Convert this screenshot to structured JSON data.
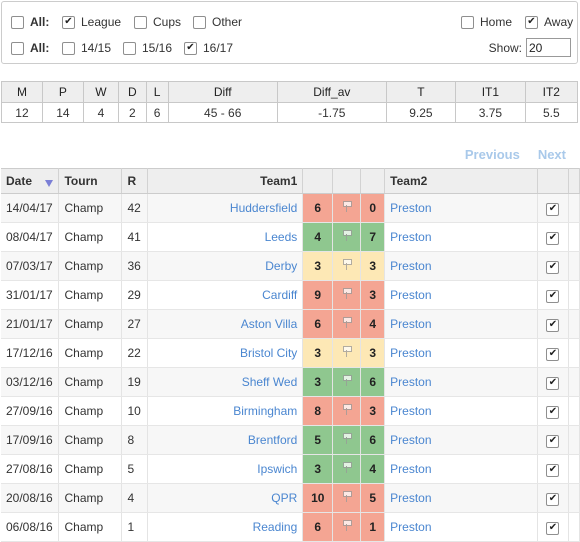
{
  "filters": {
    "row1": [
      {
        "label": "All:",
        "checked": false,
        "bold": true
      },
      {
        "label": "League",
        "checked": true,
        "bold": false
      },
      {
        "label": "Cups",
        "checked": false,
        "bold": false
      },
      {
        "label": "Other",
        "checked": false,
        "bold": false
      }
    ],
    "row2": [
      {
        "label": "All:",
        "checked": false,
        "bold": true
      },
      {
        "label": "14/15",
        "checked": false,
        "bold": false
      },
      {
        "label": "15/16",
        "checked": false,
        "bold": false
      },
      {
        "label": "16/17",
        "checked": true,
        "bold": false
      }
    ],
    "home": {
      "label": "Home",
      "checked": false
    },
    "away": {
      "label": "Away",
      "checked": true
    },
    "show_label": "Show:",
    "show_value": "20"
  },
  "stats": {
    "headers": [
      "M",
      "P",
      "W",
      "D",
      "L",
      "Diff",
      "Diff_av",
      "T",
      "IT1",
      "IT2"
    ],
    "values": [
      "12",
      "14",
      "4",
      "2",
      "6",
      "45 - 66",
      "-1.75",
      "9.25",
      "3.75",
      "5.5"
    ]
  },
  "pager": {
    "previous": "Previous",
    "next": "Next"
  },
  "colors": {
    "win": "#f4a593",
    "loss": "#8fc78f",
    "draw": "#fde8b5",
    "link": "#4a86d0",
    "pager": "#a9c9ea"
  },
  "table": {
    "headers": {
      "date": "Date",
      "tourn": "Tourn",
      "round": "R",
      "team1": "Team1",
      "team2": "Team2"
    },
    "rows": [
      {
        "date": "14/04/17",
        "tourn": "Champ",
        "r": "42",
        "team1": "Huddersfield",
        "s1": "6",
        "s2": "0",
        "team2": "Preston",
        "result": "loss_p"
      },
      {
        "date": "08/04/17",
        "tourn": "Champ",
        "r": "41",
        "team1": "Leeds",
        "s1": "4",
        "s2": "7",
        "team2": "Preston",
        "result": "win_p"
      },
      {
        "date": "07/03/17",
        "tourn": "Champ",
        "r": "36",
        "team1": "Derby",
        "s1": "3",
        "s2": "3",
        "team2": "Preston",
        "result": "draw"
      },
      {
        "date": "31/01/17",
        "tourn": "Champ",
        "r": "29",
        "team1": "Cardiff",
        "s1": "9",
        "s2": "3",
        "team2": "Preston",
        "result": "loss_p"
      },
      {
        "date": "21/01/17",
        "tourn": "Champ",
        "r": "27",
        "team1": "Aston Villa",
        "s1": "6",
        "s2": "4",
        "team2": "Preston",
        "result": "loss_p"
      },
      {
        "date": "17/12/16",
        "tourn": "Champ",
        "r": "22",
        "team1": "Bristol City",
        "s1": "3",
        "s2": "3",
        "team2": "Preston",
        "result": "draw"
      },
      {
        "date": "03/12/16",
        "tourn": "Champ",
        "r": "19",
        "team1": "Sheff Wed",
        "s1": "3",
        "s2": "6",
        "team2": "Preston",
        "result": "win_p"
      },
      {
        "date": "27/09/16",
        "tourn": "Champ",
        "r": "10",
        "team1": "Birmingham",
        "s1": "8",
        "s2": "3",
        "team2": "Preston",
        "result": "loss_p"
      },
      {
        "date": "17/09/16",
        "tourn": "Champ",
        "r": "8",
        "team1": "Brentford",
        "s1": "5",
        "s2": "6",
        "team2": "Preston",
        "result": "win_p"
      },
      {
        "date": "27/08/16",
        "tourn": "Champ",
        "r": "5",
        "team1": "Ipswich",
        "s1": "3",
        "s2": "4",
        "team2": "Preston",
        "result": "win_p"
      },
      {
        "date": "20/08/16",
        "tourn": "Champ",
        "r": "4",
        "team1": "QPR",
        "s1": "10",
        "s2": "5",
        "team2": "Preston",
        "result": "loss_p"
      },
      {
        "date": "06/08/16",
        "tourn": "Champ",
        "r": "1",
        "team1": "Reading",
        "s1": "6",
        "s2": "1",
        "team2": "Preston",
        "result": "loss_p"
      }
    ]
  }
}
